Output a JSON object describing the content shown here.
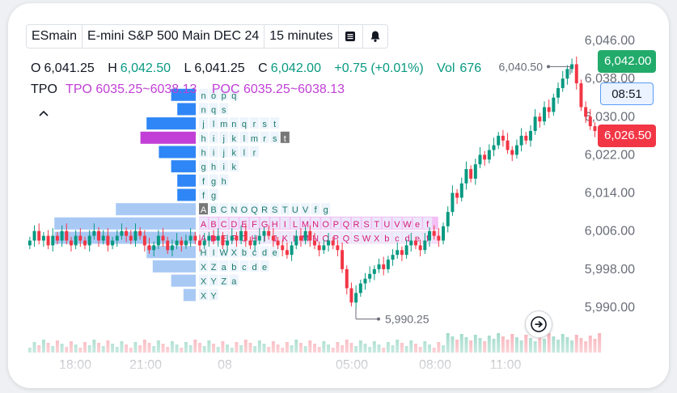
{
  "toolbar": {
    "symbol": "ESmain",
    "description": "E-mini S&P 500 Main DEC 24",
    "interval": "15 minutes",
    "menu_icon": "list-icon",
    "alert_icon": "bell-icon"
  },
  "ohlc": {
    "o_label": "O",
    "o": "6,041.25",
    "h_label": "H",
    "h": "6,042.50",
    "l_label": "L",
    "l": "6,041.25",
    "c_label": "C",
    "c": "6,042.00",
    "change": "+0.75 (+0.01%)",
    "vol_label": "Vol",
    "vol": "676"
  },
  "tpo": {
    "label": "TPO",
    "tpo_range": "TPO 6035.25~6038.13",
    "poc_range": "POC 6035.25~6038.13"
  },
  "collapse_icon": "caret-up-icon",
  "badges": {
    "last_price": "6,042.00",
    "countdown": "08:51",
    "low_marker": "6,026.50"
  },
  "annotations": {
    "high_label": "6,040.50",
    "low_label": "5,990.25"
  },
  "scroll_icon": "arrow-right-icon",
  "colors": {
    "up": "#089981",
    "down": "#f23645",
    "poc": "#c13fd6",
    "profile_blue": "#2f86f6",
    "profile_light": "#a9c9f5"
  },
  "chart_data": {
    "type": "candlestick",
    "y_axis": {
      "ticks": [
        "6,046.00",
        "6,038.00",
        "6,030.00",
        "6,022.00",
        "6,014.00",
        "6,006.00",
        "5,998.00",
        "5,990.00"
      ],
      "ylim": [
        5986,
        6048
      ]
    },
    "x_axis": {
      "ticks": [
        "18:00",
        "21:00",
        "08",
        "05:00",
        "08:00",
        "11:00"
      ]
    },
    "tpo_rows": [
      {
        "price": 6034.5,
        "letters": "n o p q"
      },
      {
        "price": 6031.5,
        "letters": "n q s"
      },
      {
        "price": 6028.5,
        "letters": "j l m n q r s t"
      },
      {
        "price": 6025.5,
        "letters": "h i j k l m r s t"
      },
      {
        "price": 6022.5,
        "letters": "h i j k l r"
      },
      {
        "price": 6019.5,
        "letters": "g h i k"
      },
      {
        "price": 6016.5,
        "letters": "f g h"
      },
      {
        "price": 6013.5,
        "letters": "f g"
      },
      {
        "price": 6010.5,
        "letters": "A B C N O Q R S T U V f g"
      },
      {
        "price": 6007.5,
        "letters": "A B C D E F G H I L M N O P Q R S T U V W e f"
      },
      {
        "price": 6004.5,
        "letters": "A D E F G H I J K L M N O P Q S W X b c d e f"
      },
      {
        "price": 6001.5,
        "letters": "H I W X b c d e"
      },
      {
        "price": 5998.5,
        "letters": "X Z a b c d e"
      },
      {
        "price": 5995.5,
        "letters": "X Y Z a"
      },
      {
        "price": 5992.5,
        "letters": "X Y"
      }
    ],
    "volume_profile": [
      {
        "price": 6034.5,
        "value": 4
      },
      {
        "price": 6031.5,
        "value": 3
      },
      {
        "price": 6028.5,
        "value": 8
      },
      {
        "price": 6025.5,
        "value": 9
      },
      {
        "price": 6022.5,
        "value": 6
      },
      {
        "price": 6019.5,
        "value": 4
      },
      {
        "price": 6016.5,
        "value": 3
      },
      {
        "price": 6013.5,
        "value": 3
      },
      {
        "price": 6010.5,
        "value": 13
      },
      {
        "price": 6007.5,
        "value": 23
      },
      {
        "price": 6004.5,
        "value": 23
      },
      {
        "price": 6001.5,
        "value": 8
      },
      {
        "price": 5998.5,
        "value": 7
      },
      {
        "price": 5995.5,
        "value": 4
      },
      {
        "price": 5992.5,
        "value": 2
      }
    ],
    "poc_price": 6025.5
  }
}
